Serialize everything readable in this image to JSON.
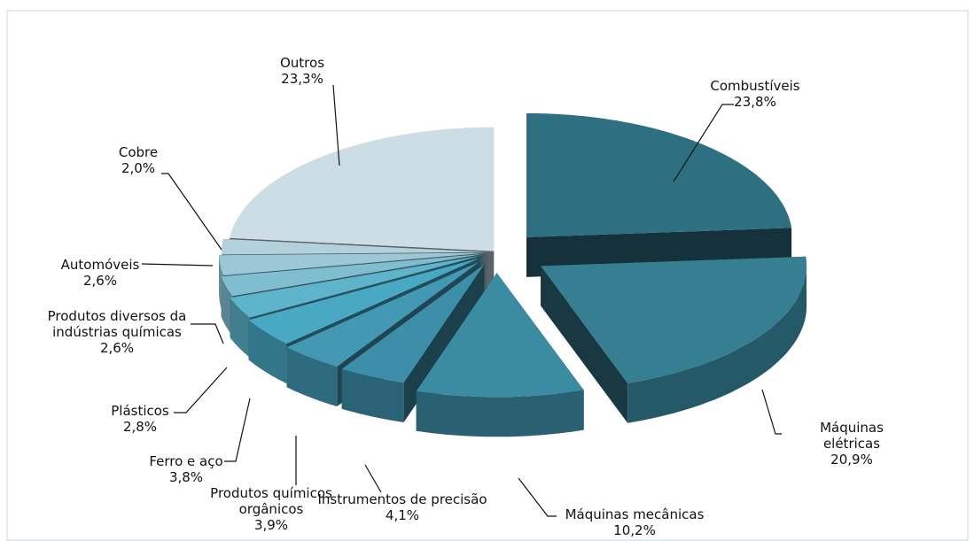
{
  "chart_data": {
    "type": "pie",
    "categories": [
      "Combustíveis",
      "Máquinas elétricas",
      "Máquinas mecânicas",
      "Instrumentos de precisão",
      "Produtos químicos\norgânicos",
      "Ferro e aço",
      "Plásticos",
      "Produtos diversos da\nindústrias químicas",
      "Automóveis",
      "Cobre",
      "Outros"
    ],
    "values": [
      23.8,
      20.9,
      10.2,
      4.1,
      3.9,
      3.8,
      2.8,
      2.6,
      2.6,
      2.0,
      23.3
    ],
    "value_labels": [
      "23,8%",
      "20,9%",
      "10,2%",
      "4,1%",
      "3,9%",
      "3,8%",
      "2,8%",
      "2,6%",
      "2,6%",
      "2,0%",
      "23,3%"
    ],
    "colors": [
      "#2e7082",
      "#367f93",
      "#3b8ba3",
      "#3d8ea9",
      "#4399b4",
      "#49a9c5",
      "#5db4cb",
      "#7fbdd0",
      "#9bc7d6",
      "#b2d1dd",
      "#cddde6"
    ]
  }
}
